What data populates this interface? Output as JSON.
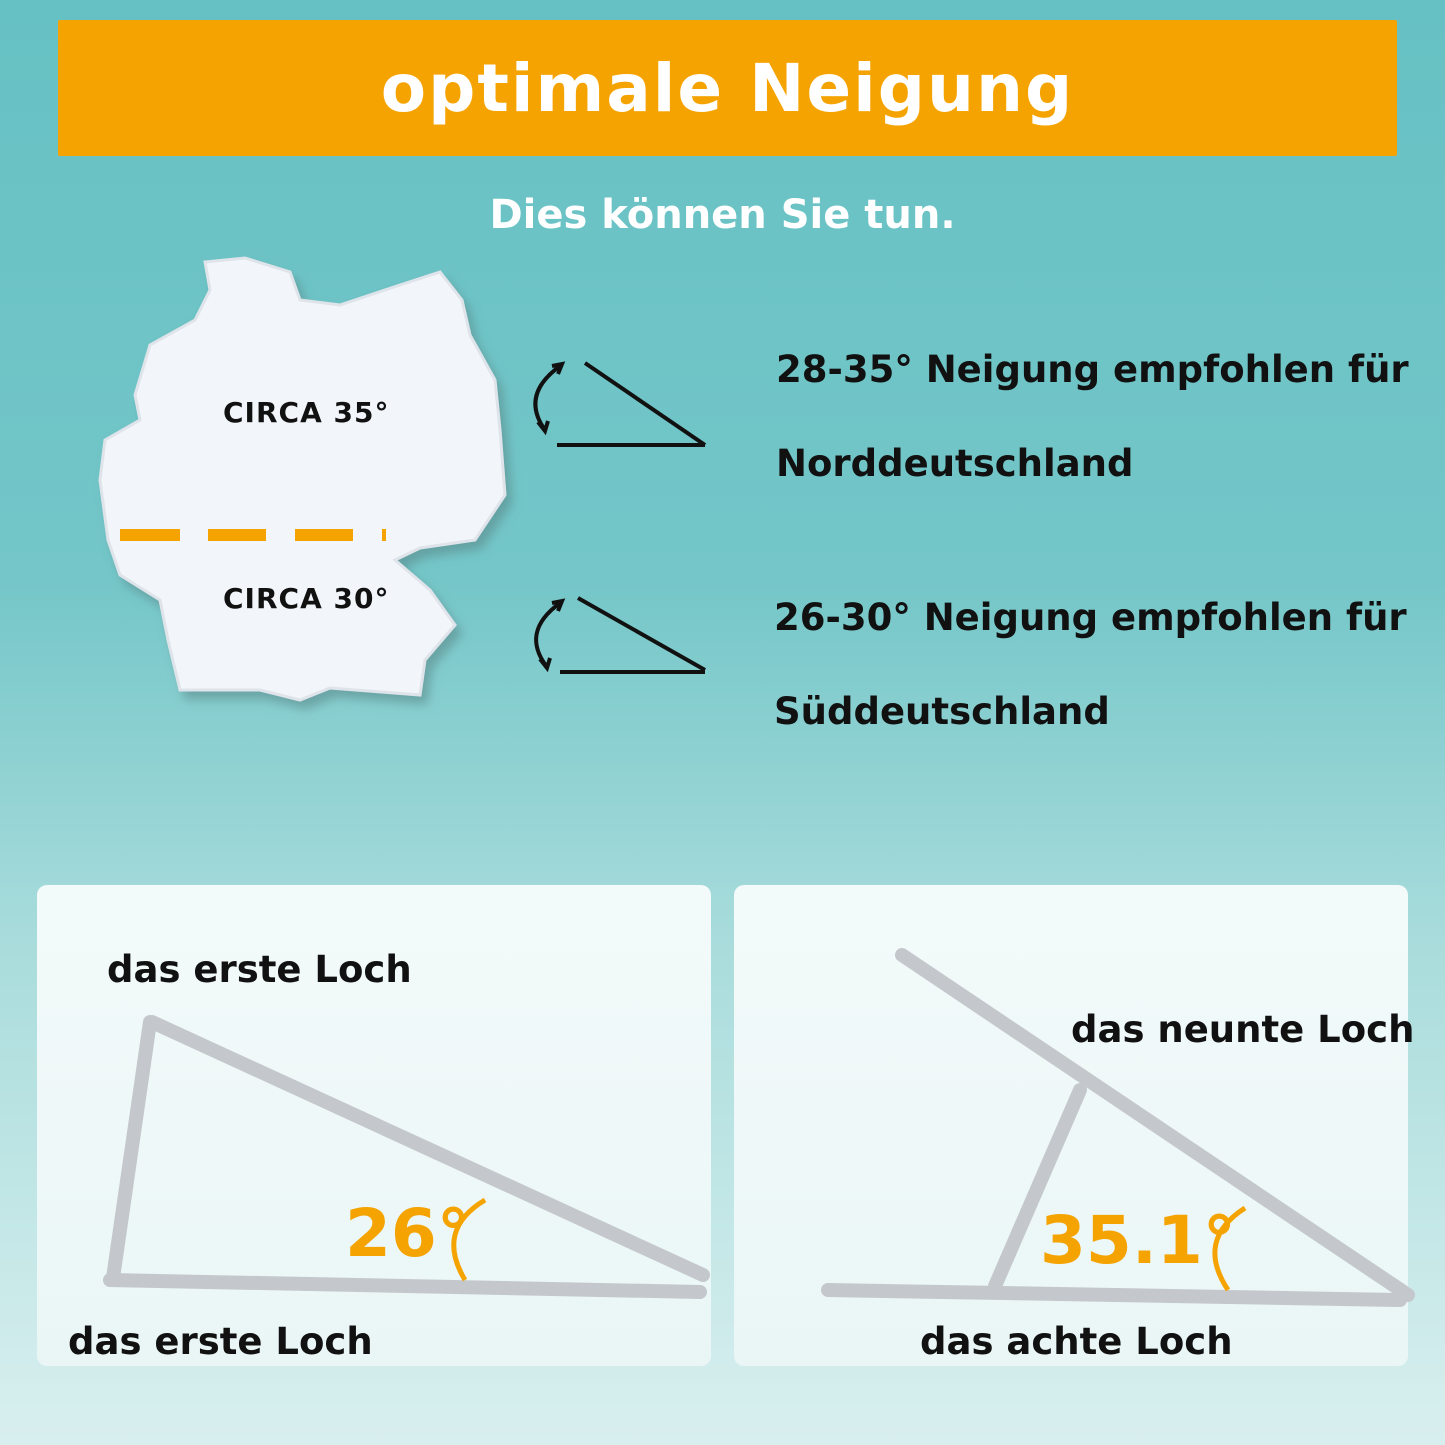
{
  "header": {
    "title": "optimale Neigung",
    "subtitle": "Dies können Sie tun."
  },
  "map": {
    "north_label": "CIRCA 35°",
    "south_label": "CIRCA 30°",
    "divider_color": "#f5a300"
  },
  "recommendations": [
    {
      "line1": "28-35° Neigung empfohlen für",
      "line2": "Norddeutschland",
      "icon": "tilt-angle-icon"
    },
    {
      "line1": "26-30° Neigung empfohlen für",
      "line2": "Süddeutschland",
      "icon": "tilt-angle-icon"
    }
  ],
  "panels": [
    {
      "top_label": "das erste Loch",
      "bottom_label": "das erste Loch",
      "angle": "26°"
    },
    {
      "top_label": "das neunte Loch",
      "bottom_label": "das achte Loch",
      "angle": "35.1°"
    }
  ],
  "colors": {
    "accent": "#f5a300",
    "background": "#66c1c4",
    "text": "#111111"
  }
}
